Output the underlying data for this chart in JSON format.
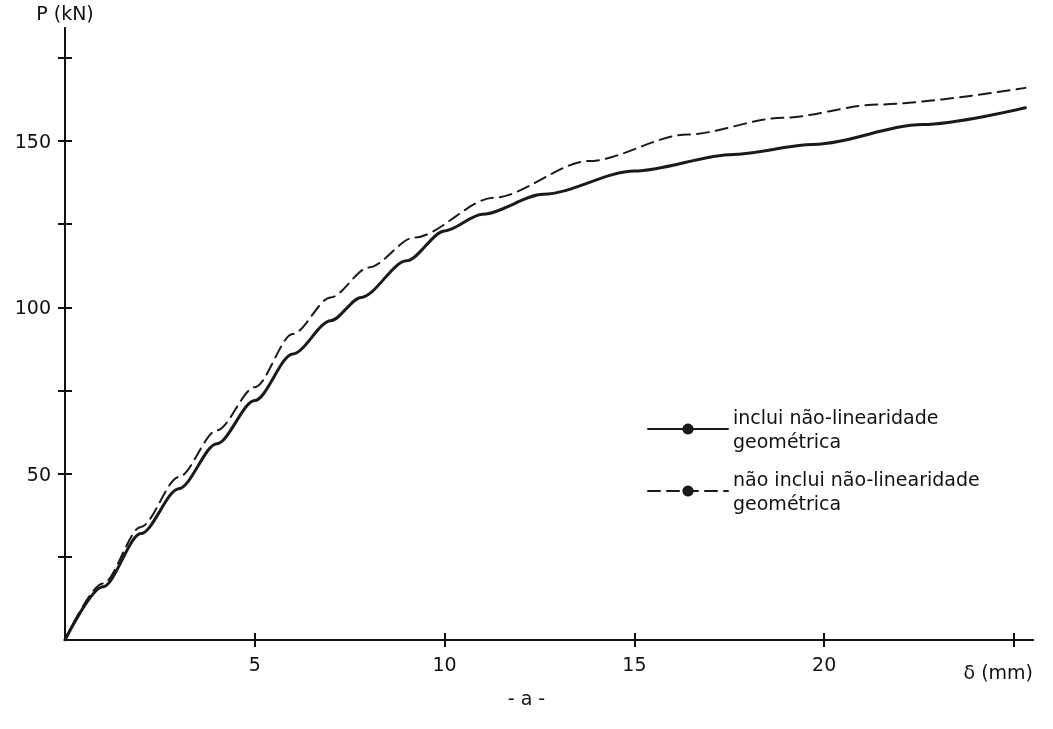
{
  "chart_data": {
    "type": "line",
    "xlabel": "δ (mm)",
    "ylabel": "P (kN)",
    "annotations": [
      "- a -"
    ],
    "xlim": [
      0,
      25.5
    ],
    "xticks": [
      5,
      10,
      15,
      20,
      {
        "value": 25,
        "label": null
      }
    ],
    "ylim": [
      0,
      184
    ],
    "yticks": [
      {
        "value": 25,
        "label": null
      },
      50,
      {
        "value": 75,
        "label": null
      },
      100,
      {
        "value": 125,
        "label": null
      },
      150,
      {
        "value": 175,
        "label": null
      }
    ],
    "grid": false,
    "legend": "right",
    "marker": "none",
    "series": [
      {
        "name": "inclui não-linearidade geométrica",
        "color": "#1a1a1a",
        "line_style": "solid",
        "x": [
          0,
          1,
          2,
          3,
          4,
          5,
          6,
          7,
          7.8,
          9,
          10,
          11,
          12.6,
          15,
          17.6,
          19.7,
          22.6,
          25.3
        ],
        "values": [
          0,
          16,
          32,
          45.5,
          59,
          72,
          86,
          96,
          103,
          114,
          123,
          128,
          134,
          141,
          146,
          149,
          155,
          160
        ]
      },
      {
        "name": "não inclui não-linearidade geométrica",
        "color": "#1a1a1a",
        "line_style": "dashed",
        "x": [
          0,
          1,
          2,
          3,
          4,
          5,
          6,
          7,
          8,
          9.2,
          11.3,
          13.8,
          16.4,
          18.9,
          21.4,
          25.3
        ],
        "values": [
          0,
          17,
          34,
          49,
          63,
          76,
          92,
          103,
          112,
          121,
          133,
          144,
          152,
          157,
          161,
          166
        ]
      }
    ]
  }
}
